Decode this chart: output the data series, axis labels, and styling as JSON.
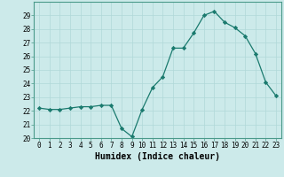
{
  "x": [
    0,
    1,
    2,
    3,
    4,
    5,
    6,
    7,
    8,
    9,
    10,
    11,
    12,
    13,
    14,
    15,
    16,
    17,
    18,
    19,
    20,
    21,
    22,
    23
  ],
  "y": [
    22.2,
    22.1,
    22.1,
    22.2,
    22.3,
    22.3,
    22.4,
    22.4,
    20.7,
    20.1,
    22.1,
    23.7,
    24.5,
    26.6,
    26.6,
    27.7,
    29.0,
    29.3,
    28.5,
    28.1,
    27.5,
    26.2,
    24.1,
    23.1
  ],
  "xlabel": "Humidex (Indice chaleur)",
  "ylim": [
    20,
    30
  ],
  "xlim": [
    -0.5,
    23.5
  ],
  "yticks": [
    20,
    21,
    22,
    23,
    24,
    25,
    26,
    27,
    28,
    29
  ],
  "xticks": [
    0,
    1,
    2,
    3,
    4,
    5,
    6,
    7,
    8,
    9,
    10,
    11,
    12,
    13,
    14,
    15,
    16,
    17,
    18,
    19,
    20,
    21,
    22,
    23
  ],
  "line_color": "#1a7a6e",
  "marker_color": "#1a7a6e",
  "bg_color": "#cceaea",
  "grid_color": "#b0d8d8",
  "xlabel_fontsize": 7.0,
  "tick_fontsize": 5.5
}
